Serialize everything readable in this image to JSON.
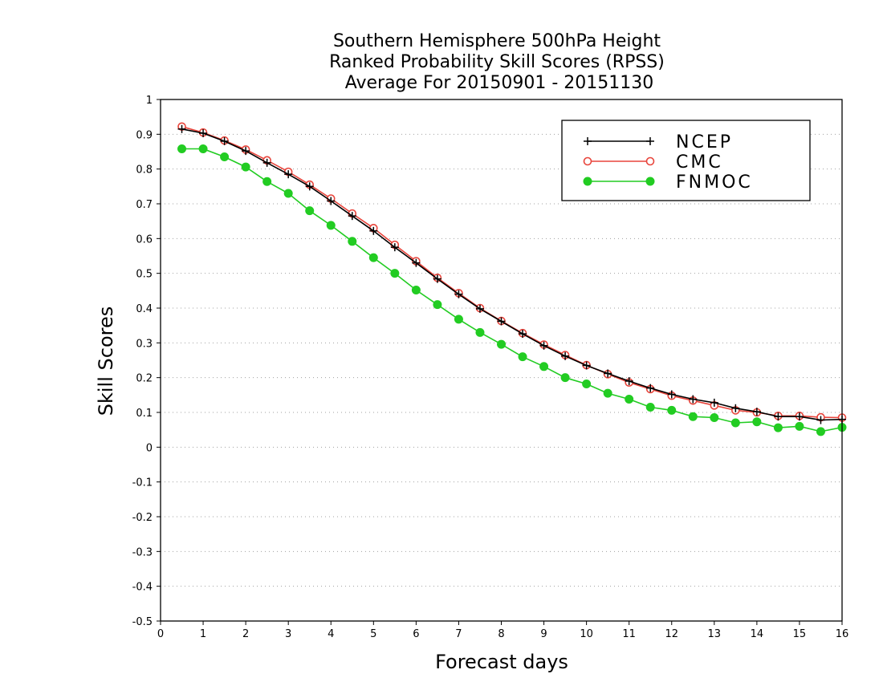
{
  "chart_data": {
    "type": "line",
    "title": [
      "Southern Hemisphere 500hPa Height",
      "Ranked Probability Skill Scores (RPSS)",
      "Average For 20150901 - 20151130"
    ],
    "xlabel": "Forecast days",
    "ylabel": "Skill Scores",
    "xlim": [
      0,
      16
    ],
    "ylim": [
      -0.5,
      1
    ],
    "xticks": [
      "0",
      "1",
      "2",
      "3",
      "4",
      "5",
      "6",
      "7",
      "8",
      "9",
      "10",
      "11",
      "12",
      "13",
      "14",
      "15",
      "16"
    ],
    "yticks": [
      "1",
      "0.9",
      "0.8",
      "0.7",
      "0.6",
      "0.5",
      "0.4",
      "0.3",
      "0.2",
      "0.1",
      "0",
      "-0.1",
      "-0.2",
      "-0.3",
      "-0.4",
      "-0.5"
    ],
    "grid": "horizontal-dotted",
    "legend_position": "top-right",
    "x": [
      0.5,
      1,
      1.5,
      2,
      2.5,
      3,
      3.5,
      4,
      4.5,
      5,
      5.5,
      6,
      6.5,
      7,
      7.5,
      8,
      8.5,
      9,
      9.5,
      10,
      10.5,
      11,
      11.5,
      12,
      12.5,
      13,
      13.5,
      14,
      14.5,
      15,
      15.5,
      16
    ],
    "series": [
      {
        "name": "NCEP",
        "color": "#000000",
        "marker": "plus",
        "values": [
          0.915,
          0.903,
          0.88,
          0.852,
          0.818,
          0.785,
          0.75,
          0.708,
          0.665,
          0.622,
          0.575,
          0.53,
          0.484,
          0.44,
          0.398,
          0.362,
          0.326,
          0.292,
          0.262,
          0.235,
          0.212,
          0.19,
          0.17,
          0.152,
          0.138,
          0.128,
          0.112,
          0.102,
          0.088,
          0.088,
          0.078,
          0.08
        ]
      },
      {
        "name": "CMC",
        "color": "#e8453c",
        "marker": "open-circle",
        "values": [
          0.922,
          0.905,
          0.882,
          0.856,
          0.825,
          0.792,
          0.755,
          0.715,
          0.672,
          0.63,
          0.582,
          0.535,
          0.487,
          0.443,
          0.4,
          0.363,
          0.328,
          0.295,
          0.265,
          0.236,
          0.21,
          0.186,
          0.167,
          0.148,
          0.134,
          0.12,
          0.106,
          0.1,
          0.09,
          0.09,
          0.086,
          0.085
        ]
      },
      {
        "name": "FNMOC",
        "color": "#22cc22",
        "marker": "filled-circle",
        "values": [
          0.858,
          0.858,
          0.835,
          0.806,
          0.764,
          0.73,
          0.68,
          0.638,
          0.592,
          0.545,
          0.5,
          0.452,
          0.41,
          0.368,
          0.33,
          0.296,
          0.26,
          0.232,
          0.2,
          0.182,
          0.155,
          0.138,
          0.115,
          0.106,
          0.088,
          0.085,
          0.07,
          0.073,
          0.056,
          0.06,
          0.045,
          0.057
        ]
      }
    ]
  }
}
